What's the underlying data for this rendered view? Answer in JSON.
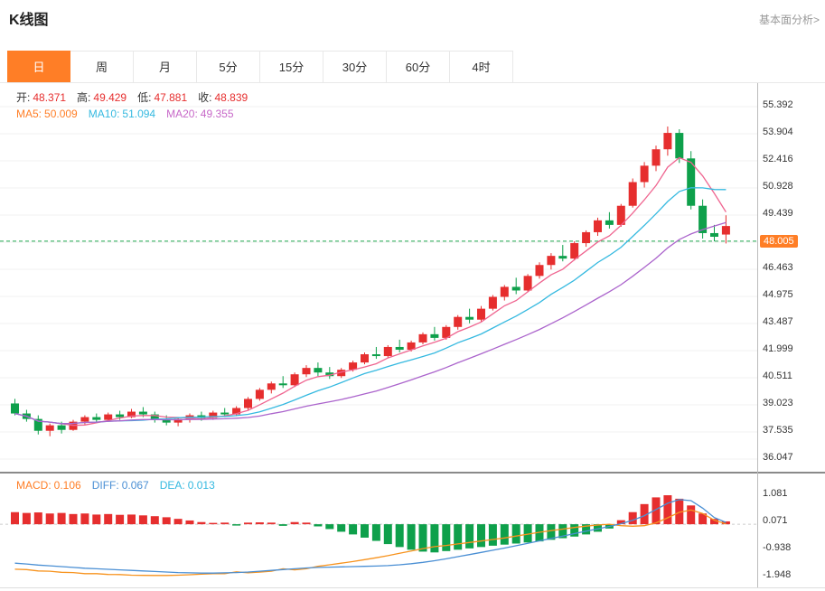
{
  "header": {
    "title": "K线图",
    "link_label": "基本面分析>"
  },
  "tabs": {
    "items": [
      {
        "label": "日",
        "active": true
      },
      {
        "label": "周",
        "active": false
      },
      {
        "label": "月",
        "active": false
      },
      {
        "label": "5分",
        "active": false
      },
      {
        "label": "15分",
        "active": false
      },
      {
        "label": "30分",
        "active": false
      },
      {
        "label": "60分",
        "active": false
      },
      {
        "label": "4时",
        "active": false
      }
    ]
  },
  "legend": {
    "ohlc": [
      {
        "label": "开:",
        "value": "48.371"
      },
      {
        "label": "高:",
        "value": "49.429"
      },
      {
        "label": "低:",
        "value": "47.881"
      },
      {
        "label": "收:",
        "value": "48.839"
      }
    ],
    "ma": [
      {
        "label": "MA5:",
        "value": "50.009",
        "text_color": "#ff7e26",
        "line_color": "#ef6590"
      },
      {
        "label": "MA10:",
        "value": "51.094",
        "text_color": "#35b9e0",
        "line_color": "#35b9e0"
      },
      {
        "label": "MA20:",
        "value": "49.355",
        "text_color": "#c768c8",
        "line_color": "#ab64cc"
      }
    ],
    "macd": [
      {
        "label": "MACD:",
        "value": "0.106",
        "text_color": "#ff7e26"
      },
      {
        "label": "DIFF:",
        "value": "0.067",
        "text_color": "#4a8fd4"
      },
      {
        "label": "DEA:",
        "value": "0.013",
        "text_color": "#35b9e0"
      }
    ]
  },
  "axes": {
    "price_labels": [
      "55.392",
      "53.904",
      "52.416",
      "50.928",
      "49.439",
      "48.005",
      "46.463",
      "44.975",
      "43.487",
      "41.999",
      "40.511",
      "39.023",
      "37.535",
      "36.047"
    ],
    "price_tag_index": 5,
    "macd_labels": [
      "1.081",
      "0.071",
      "-0.938",
      "-1.948"
    ]
  },
  "colors": {
    "up": "#e62e2e",
    "down": "#0ea04b",
    "accent": "#ff7e26",
    "grid": "#f2f2f2",
    "current_price_line": "#22ab4f",
    "diff_line": "#4a8fd4",
    "dea_line": "#f7931e"
  },
  "chart_data": {
    "type": "candlestick+macd",
    "title": "K线图 (日K)",
    "price_axis_top": 55.392,
    "price_axis_step": 1.488,
    "price_range": [
      36.047,
      55.392
    ],
    "current_price": 48.005,
    "ohlc_current": {
      "open": 48.371,
      "high": 49.429,
      "low": 47.881,
      "close": 48.839
    },
    "ma_windows": [
      5,
      10,
      20
    ],
    "ma_values": {
      "MA5": 50.009,
      "MA10": 51.094,
      "MA20": 49.355
    },
    "macd_values": {
      "MACD": 0.106,
      "DIFF": 0.067,
      "DEA": 0.013
    },
    "macd_axis": [
      1.081,
      0.071,
      -0.938,
      -1.948
    ],
    "candles": [
      [
        39.1,
        39.35,
        38.45,
        38.55
      ],
      [
        38.55,
        38.75,
        38.1,
        38.25
      ],
      [
        38.25,
        38.45,
        37.4,
        37.6
      ],
      [
        37.6,
        38.0,
        37.3,
        37.9
      ],
      [
        37.9,
        38.1,
        37.45,
        37.65
      ],
      [
        37.65,
        38.2,
        37.6,
        38.1
      ],
      [
        38.1,
        38.45,
        37.95,
        38.35
      ],
      [
        38.35,
        38.55,
        38.05,
        38.2
      ],
      [
        38.2,
        38.6,
        38.1,
        38.5
      ],
      [
        38.5,
        38.7,
        38.2,
        38.35
      ],
      [
        38.35,
        38.8,
        38.3,
        38.65
      ],
      [
        38.65,
        38.9,
        38.35,
        38.5
      ],
      [
        38.5,
        38.65,
        38.05,
        38.2
      ],
      [
        38.2,
        38.45,
        37.9,
        38.05
      ],
      [
        38.05,
        38.35,
        37.85,
        38.25
      ],
      [
        38.25,
        38.55,
        38.05,
        38.45
      ],
      [
        38.45,
        38.65,
        38.15,
        38.3
      ],
      [
        38.3,
        38.7,
        38.2,
        38.6
      ],
      [
        38.6,
        38.85,
        38.35,
        38.5
      ],
      [
        38.5,
        38.95,
        38.4,
        38.85
      ],
      [
        38.85,
        39.45,
        38.75,
        39.35
      ],
      [
        39.35,
        39.95,
        39.25,
        39.85
      ],
      [
        39.85,
        40.3,
        39.65,
        40.2
      ],
      [
        40.2,
        40.6,
        39.95,
        40.1
      ],
      [
        40.1,
        40.8,
        40.0,
        40.7
      ],
      [
        40.7,
        41.2,
        40.55,
        41.05
      ],
      [
        41.05,
        41.35,
        40.6,
        40.8
      ],
      [
        40.8,
        41.1,
        40.45,
        40.6
      ],
      [
        40.6,
        41.05,
        40.5,
        40.95
      ],
      [
        40.95,
        41.45,
        40.85,
        41.35
      ],
      [
        41.35,
        41.9,
        41.25,
        41.8
      ],
      [
        41.8,
        42.2,
        41.55,
        41.7
      ],
      [
        41.7,
        42.3,
        41.6,
        42.2
      ],
      [
        42.2,
        42.6,
        41.9,
        42.05
      ],
      [
        42.05,
        42.55,
        41.95,
        42.45
      ],
      [
        42.45,
        43.0,
        42.35,
        42.9
      ],
      [
        42.9,
        43.3,
        42.55,
        42.7
      ],
      [
        42.7,
        43.4,
        42.6,
        43.3
      ],
      [
        43.3,
        43.95,
        43.15,
        43.85
      ],
      [
        43.85,
        44.3,
        43.5,
        43.7
      ],
      [
        43.7,
        44.45,
        43.6,
        44.3
      ],
      [
        44.3,
        45.05,
        44.2,
        44.95
      ],
      [
        44.95,
        45.6,
        44.75,
        45.5
      ],
      [
        45.5,
        46.0,
        45.1,
        45.3
      ],
      [
        45.3,
        46.2,
        45.2,
        46.1
      ],
      [
        46.1,
        46.85,
        45.95,
        46.7
      ],
      [
        46.7,
        47.35,
        46.45,
        47.2
      ],
      [
        47.2,
        47.8,
        46.9,
        47.05
      ],
      [
        47.05,
        48.0,
        46.95,
        47.9
      ],
      [
        47.9,
        48.6,
        47.7,
        48.5
      ],
      [
        48.5,
        49.3,
        48.3,
        49.15
      ],
      [
        49.15,
        49.6,
        48.7,
        48.9
      ],
      [
        48.9,
        50.05,
        48.8,
        49.95
      ],
      [
        49.95,
        51.45,
        49.85,
        51.25
      ],
      [
        51.25,
        52.35,
        50.95,
        52.15
      ],
      [
        52.15,
        53.25,
        51.85,
        53.05
      ],
      [
        53.05,
        54.3,
        52.7,
        53.95
      ],
      [
        53.95,
        54.15,
        52.3,
        52.55
      ],
      [
        52.55,
        52.95,
        49.75,
        49.95
      ],
      [
        49.95,
        50.3,
        48.15,
        48.45
      ],
      [
        48.45,
        48.9,
        48.0,
        48.25
      ],
      [
        48.371,
        49.429,
        47.881,
        48.839
      ]
    ],
    "macd_hist": [
      0.45,
      0.42,
      0.44,
      0.4,
      0.42,
      0.38,
      0.4,
      0.36,
      0.38,
      0.35,
      0.36,
      0.33,
      0.3,
      0.26,
      0.2,
      0.14,
      0.08,
      0.05,
      0.06,
      -0.05,
      0.06,
      0.07,
      0.06,
      -0.06,
      0.08,
      0.06,
      -0.08,
      -0.18,
      -0.28,
      -0.38,
      -0.5,
      -0.62,
      -0.74,
      -0.85,
      -0.95,
      -1.02,
      -1.05,
      -1.0,
      -0.95,
      -0.9,
      -0.85,
      -0.8,
      -0.76,
      -0.72,
      -0.68,
      -0.64,
      -0.58,
      -0.52,
      -0.46,
      -0.38,
      -0.28,
      -0.16,
      0.15,
      0.45,
      0.75,
      1.0,
      1.08,
      0.95,
      0.7,
      0.4,
      0.2,
      0.106
    ],
    "macd_diff": [
      -1.45,
      -1.48,
      -1.52,
      -1.55,
      -1.58,
      -1.61,
      -1.64,
      -1.66,
      -1.68,
      -1.7,
      -1.72,
      -1.74,
      -1.76,
      -1.78,
      -1.8,
      -1.81,
      -1.82,
      -1.82,
      -1.81,
      -1.8,
      -1.78,
      -1.75,
      -1.72,
      -1.69,
      -1.66,
      -1.63,
      -1.61,
      -1.6,
      -1.59,
      -1.58,
      -1.57,
      -1.56,
      -1.54,
      -1.51,
      -1.47,
      -1.42,
      -1.36,
      -1.29,
      -1.21,
      -1.13,
      -1.05,
      -0.97,
      -0.89,
      -0.8,
      -0.71,
      -0.62,
      -0.53,
      -0.44,
      -0.35,
      -0.26,
      -0.17,
      -0.08,
      0.02,
      0.15,
      0.32,
      0.55,
      0.78,
      0.92,
      0.88,
      0.6,
      0.25,
      0.067
    ]
  }
}
